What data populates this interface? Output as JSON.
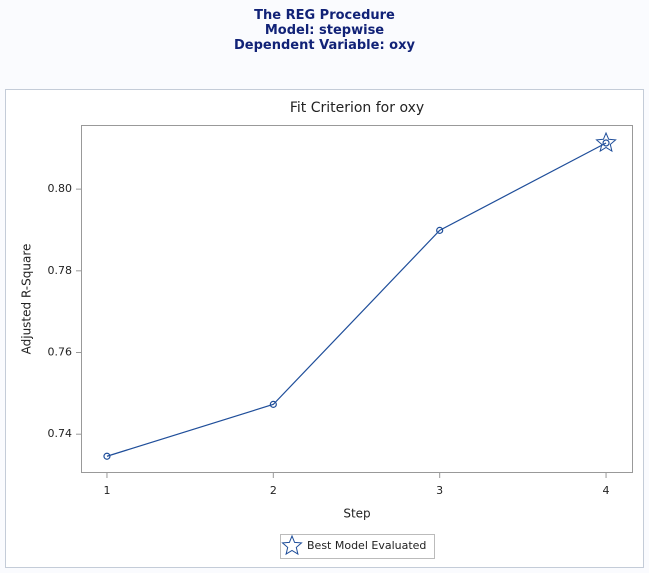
{
  "header": {
    "title": "The REG Procedure",
    "model": "Model: stepwise",
    "dependent": "Dependent Variable: oxy"
  },
  "chart_data": {
    "type": "line",
    "title": "Fit Criterion for oxy",
    "x_label": "Step",
    "y_label": "Adjusted R-Square",
    "x": [
      1,
      2,
      3,
      4
    ],
    "values": [
      0.7346,
      0.7473,
      0.7899,
      0.8113
    ],
    "color": "#1f4e9a",
    "xlim": [
      0.844,
      4.162
    ],
    "xticks": [
      1,
      2,
      3,
      4
    ],
    "ylim": [
      0.7305,
      0.8157
    ],
    "yticks": [
      0.74,
      0.76,
      0.78,
      {
        "value": 0.8,
        "label": "0.80"
      }
    ],
    "best_model": {
      "label": "Best Model Evaluated",
      "x": 4
    }
  }
}
